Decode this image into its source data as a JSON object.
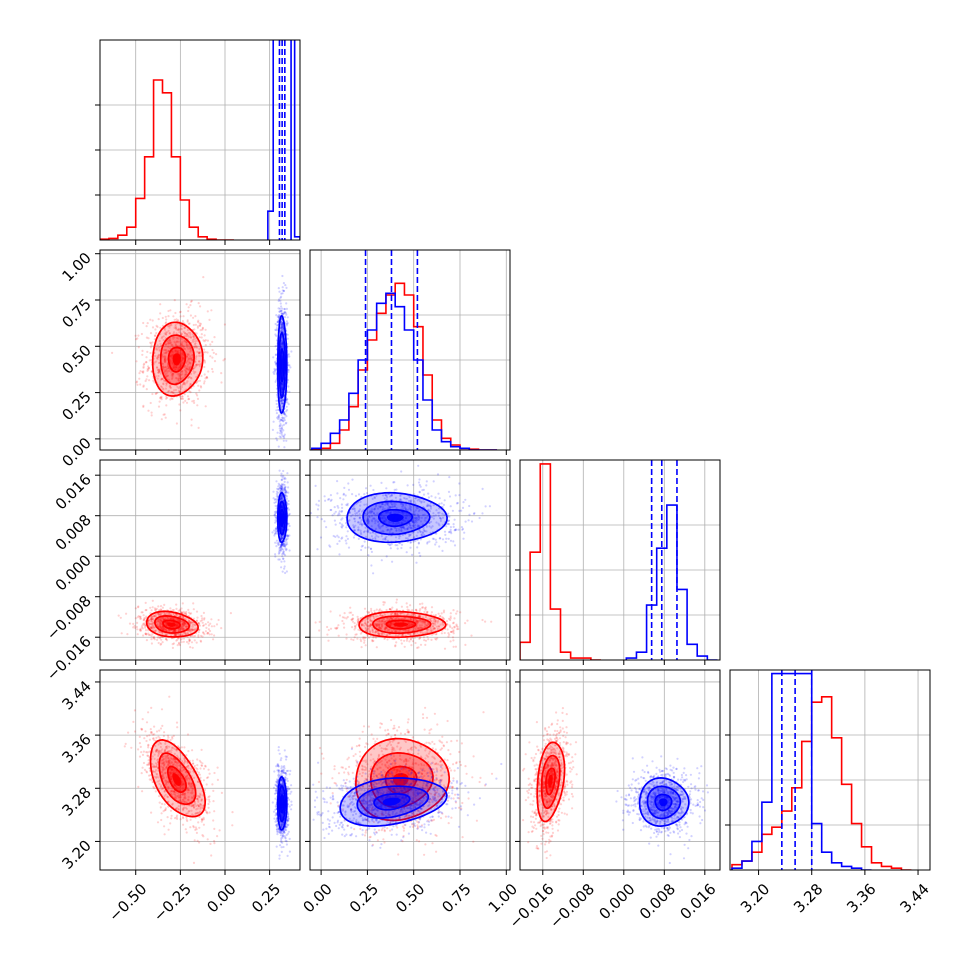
{
  "chart_data": {
    "type": "scatter",
    "subtype": "corner-plot",
    "title": "",
    "grid": true,
    "legend": "none",
    "n_params": 4,
    "series": [
      {
        "name": "",
        "color": "#ff0000"
      },
      {
        "name": "",
        "color": "#0000ff"
      }
    ],
    "axes": [
      {
        "range": [
          -0.7,
          0.42
        ],
        "ticks": [
          -0.5,
          -0.25,
          0.0,
          0.25
        ],
        "tick_labels": [
          "−0.50",
          "−0.25",
          "0.00",
          "0.25"
        ]
      },
      {
        "range": [
          -0.06,
          1.02
        ],
        "ticks": [
          0.0,
          0.25,
          0.5,
          0.75,
          1.0
        ],
        "tick_labels": [
          "0.00",
          "0.25",
          "0.50",
          "0.75",
          "1.00"
        ]
      },
      {
        "range": [
          -0.0205,
          0.019
        ],
        "ticks": [
          -0.016,
          -0.008,
          0.0,
          0.008,
          0.016
        ],
        "tick_labels": [
          "−0.016",
          "−0.008",
          "0.000",
          "0.008",
          "0.016"
        ]
      },
      {
        "range": [
          3.157,
          3.458
        ],
        "ticks": [
          3.2,
          3.28,
          3.36,
          3.44
        ],
        "tick_labels": [
          "3.20",
          "3.28",
          "3.36",
          "3.44"
        ]
      }
    ],
    "marginals": [
      {
        "param": 0,
        "ymax": 1.25,
        "red": {
          "edges": [
            -0.7,
            -0.65,
            -0.6,
            -0.55,
            -0.5,
            -0.45,
            -0.4,
            -0.35,
            -0.3,
            -0.25,
            -0.2,
            -0.15,
            -0.1,
            -0.05,
            0.0,
            0.05
          ],
          "counts": [
            0.005,
            0.01,
            0.03,
            0.08,
            0.26,
            0.52,
            1.0,
            0.92,
            0.52,
            0.25,
            0.08,
            0.02,
            0.005,
            0.0,
            0.0
          ]
        },
        "blue": {
          "edges": [
            0.24,
            0.27,
            0.3,
            0.33,
            0.36,
            0.39,
            0.42
          ],
          "counts": [
            0.18,
            1.4,
            1.4,
            1.4,
            1.4,
            0.02
          ]
        },
        "quantiles": [
          0.305,
          0.32,
          0.335
        ],
        "extra_lines": [
          0.37
        ]
      },
      {
        "param": 1,
        "ymax": 1.2,
        "red": {
          "edges": [
            -0.05,
            0.0,
            0.05,
            0.1,
            0.15,
            0.2,
            0.25,
            0.3,
            0.35,
            0.4,
            0.45,
            0.5,
            0.55,
            0.6,
            0.65,
            0.7,
            0.75,
            0.8,
            0.85,
            0.9,
            0.95
          ],
          "counts": [
            0.005,
            0.01,
            0.04,
            0.12,
            0.26,
            0.48,
            0.66,
            0.82,
            0.93,
            1.0,
            0.93,
            0.74,
            0.45,
            0.18,
            0.07,
            0.03,
            0.01,
            0.005,
            0.0,
            0.0
          ]
        },
        "blue": {
          "edges": [
            -0.05,
            0.0,
            0.05,
            0.1,
            0.15,
            0.2,
            0.25,
            0.3,
            0.35,
            0.4,
            0.45,
            0.5,
            0.55,
            0.6,
            0.65,
            0.7,
            0.75,
            0.8,
            0.85,
            0.9,
            0.95
          ],
          "counts": [
            0.01,
            0.04,
            0.1,
            0.18,
            0.34,
            0.54,
            0.72,
            0.88,
            0.94,
            0.86,
            0.72,
            0.54,
            0.3,
            0.12,
            0.05,
            0.02,
            0.01,
            0.0,
            0.0,
            0.0
          ]
        },
        "quantiles": [
          0.24,
          0.38,
          0.52
        ]
      },
      {
        "param": 2,
        "ymax": 1.02,
        "red": {
          "edges": [
            -0.0205,
            -0.0185,
            -0.0165,
            -0.0145,
            -0.0125,
            -0.0105,
            -0.0085,
            -0.0065,
            -0.0045
          ],
          "counts": [
            0.09,
            0.55,
            1.0,
            0.26,
            0.04,
            0.01,
            0.01,
            0.0
          ]
        },
        "blue": {
          "edges": [
            0.0005,
            0.0025,
            0.0045,
            0.0065,
            0.0085,
            0.0105,
            0.0125,
            0.0145,
            0.0165,
            0.0185
          ],
          "counts": [
            0.01,
            0.04,
            0.28,
            0.57,
            0.79,
            0.36,
            0.08,
            0.02,
            0.0
          ]
        },
        "quantiles": [
          0.0055,
          0.0075,
          0.0105
        ]
      },
      {
        "param": 3,
        "ymax": 1.12,
        "red": {
          "edges": [
            3.16,
            3.175,
            3.19,
            3.205,
            3.22,
            3.235,
            3.25,
            3.265,
            3.28,
            3.295,
            3.31,
            3.325,
            3.34,
            3.355,
            3.37,
            3.385,
            3.4,
            3.415,
            3.43
          ],
          "counts": [
            0.03,
            0.05,
            0.1,
            0.2,
            0.24,
            0.33,
            0.46,
            0.72,
            0.94,
            0.97,
            0.74,
            0.48,
            0.26,
            0.13,
            0.04,
            0.02,
            0.01,
            0.0
          ]
        },
        "blue": {
          "edges": [
            3.16,
            3.175,
            3.19,
            3.205,
            3.22,
            3.235,
            3.25,
            3.265,
            3.28,
            3.295,
            3.31,
            3.325,
            3.34,
            3.355,
            3.37
          ],
          "counts": [
            0.01,
            0.05,
            0.16,
            0.38,
            1.1,
            1.1,
            1.1,
            1.1,
            0.26,
            0.1,
            0.04,
            0.02,
            0.01,
            0.0
          ]
        },
        "quantiles": [
          3.235,
          3.255,
          3.28
        ]
      }
    ],
    "joint": [
      {
        "row": 1,
        "col": 0,
        "red": {
          "center": [
            -0.27,
            0.43
          ],
          "spread": [
            0.078,
            0.11
          ],
          "rho": 0.05
        },
        "blue": {
          "center": [
            0.32,
            0.4
          ],
          "spread": [
            0.014,
            0.145
          ],
          "rho": 0.0
        }
      },
      {
        "row": 2,
        "col": 0,
        "red": {
          "center": [
            -0.3,
            -0.0135
          ],
          "spread": [
            0.08,
            0.0014
          ],
          "rho": -0.2
        },
        "blue": {
          "center": [
            0.32,
            0.0076
          ],
          "spread": [
            0.014,
            0.0027
          ],
          "rho": 0.0
        }
      },
      {
        "row": 2,
        "col": 1,
        "red": {
          "center": [
            0.43,
            -0.0135
          ],
          "spread": [
            0.13,
            0.0014
          ],
          "rho": 0.0
        },
        "blue": {
          "center": [
            0.4,
            0.0076
          ],
          "spread": [
            0.15,
            0.0027
          ],
          "rho": 0.0
        }
      },
      {
        "row": 3,
        "col": 0,
        "red": {
          "center": [
            -0.27,
            3.293
          ],
          "spread": [
            0.085,
            0.032
          ],
          "rho": -0.55
        },
        "blue": {
          "center": [
            0.32,
            3.257
          ],
          "spread": [
            0.014,
            0.022
          ],
          "rho": 0.0
        }
      },
      {
        "row": 3,
        "col": 1,
        "red": {
          "center": [
            0.43,
            3.293
          ],
          "spread": [
            0.14,
            0.034
          ],
          "rho": 0.05
        },
        "blue": {
          "center": [
            0.38,
            3.26
          ],
          "spread": [
            0.16,
            0.02
          ],
          "rho": 0.25
        }
      },
      {
        "row": 3,
        "col": 2,
        "red": {
          "center": [
            -0.0145,
            3.291
          ],
          "spread": [
            0.0015,
            0.033
          ],
          "rho": 0.3
        },
        "blue": {
          "center": [
            0.0078,
            3.259
          ],
          "spread": [
            0.0027,
            0.02
          ],
          "rho": 0.0
        }
      }
    ]
  }
}
